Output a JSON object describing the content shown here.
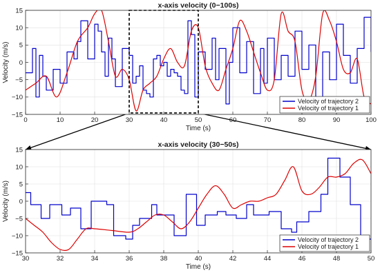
{
  "chart_data": [
    {
      "type": "line",
      "title": "x-axis velocity (0−100s)",
      "xlabel": "Time (s)",
      "ylabel": "Velocity (m/s)",
      "xlim": [
        0,
        100
      ],
      "ylim": [
        -15,
        15
      ],
      "xticks": [
        0,
        10,
        20,
        30,
        40,
        50,
        60,
        70,
        80,
        90,
        100
      ],
      "yticks": [
        -15,
        -10,
        -5,
        0,
        5,
        10,
        15
      ],
      "grid": true,
      "legend_position": "bottom-right",
      "highlight_box": {
        "x": [
          30,
          50
        ],
        "y": [
          -14.6,
          15
        ],
        "style": "dashed"
      },
      "series": [
        {
          "name": "Velocity of trajectory 2",
          "color": "#0000cc",
          "style": "step",
          "x": [
            0,
            2,
            3,
            4,
            5,
            6,
            8,
            10,
            12,
            14,
            15,
            16,
            18,
            20,
            21,
            22,
            23,
            24,
            25,
            26,
            28,
            30,
            31,
            32,
            33,
            34,
            35,
            36,
            37,
            38,
            39,
            40,
            41,
            42,
            43,
            44,
            45,
            46,
            47,
            48,
            49,
            50,
            52,
            54,
            55,
            56,
            58,
            59,
            60,
            62,
            64,
            66,
            68,
            69,
            70,
            72,
            74,
            76,
            78,
            80,
            82,
            84,
            86,
            88,
            90,
            92,
            94,
            96,
            98,
            100
          ],
          "y": [
            -3,
            4,
            -10,
            2,
            -4,
            -8,
            -2,
            -6,
            3,
            1,
            6,
            12,
            1,
            11,
            9,
            3,
            -4,
            7,
            1,
            -7,
            4,
            2,
            -6,
            -4,
            -1,
            -8,
            -9,
            -10,
            1,
            2,
            -1,
            0,
            -4,
            -2,
            -3,
            -4,
            -8,
            -9,
            12,
            8,
            -10,
            3,
            -2,
            7,
            -5,
            4,
            -12,
            0,
            10,
            -3,
            6,
            -9,
            4,
            -6,
            7,
            -5,
            2,
            -4,
            9,
            -2,
            5,
            -10,
            3,
            -5,
            11,
            2,
            -6,
            4,
            13,
            3
          ]
        },
        {
          "name": "Velocity of trajectory 1",
          "color": "#dd0000",
          "style": "smooth",
          "x": [
            0,
            3,
            6,
            9,
            12,
            15,
            18,
            20,
            22,
            24,
            26,
            28,
            30,
            32,
            34,
            36,
            38,
            40,
            42,
            44,
            46,
            48,
            50,
            52,
            54,
            56,
            58,
            60,
            62,
            64,
            66,
            68,
            70,
            72,
            74,
            76,
            78,
            80,
            82,
            84,
            86,
            88,
            90,
            92,
            94,
            96,
            98,
            100
          ],
          "y": [
            -8,
            -6,
            -4,
            -10,
            -3,
            6,
            10,
            14,
            15,
            6,
            -4,
            -2,
            -5,
            -14,
            -8,
            -6,
            -4,
            1,
            4,
            0,
            -1,
            9,
            10,
            -1,
            -6,
            -8,
            -2,
            4,
            12,
            9,
            3,
            -3,
            -8,
            -5,
            14,
            9,
            6,
            -8,
            -11,
            -4,
            14,
            12,
            6,
            -2,
            -3,
            1,
            -10,
            -12
          ]
        }
      ]
    },
    {
      "type": "line",
      "title": "x-axis velocity (30−50s)",
      "xlabel": "Time (s)",
      "ylabel": "Velocity (m/s)",
      "xlim": [
        30,
        50
      ],
      "ylim": [
        -15,
        15
      ],
      "xticks": [
        30,
        32,
        34,
        36,
        38,
        40,
        42,
        44,
        46,
        48,
        50
      ],
      "yticks": [
        -15,
        -10,
        -5,
        0,
        5,
        10,
        15
      ],
      "grid": true,
      "legend_position": "bottom-right",
      "series": [
        {
          "name": "Velocity of trajectory 2",
          "color": "#0000cc",
          "style": "step",
          "x": [
            30,
            30.3,
            30.9,
            31.4,
            32.1,
            32.6,
            33.2,
            33.8,
            34.7,
            35.1,
            35.8,
            36.2,
            36.6,
            37.3,
            37.6,
            38.0,
            38.6,
            39.3,
            39.9,
            40.4,
            41.1,
            41.6,
            42.2,
            42.8,
            43.2,
            44.1,
            44.8,
            45.4,
            45.7,
            46.4,
            47.1,
            47.5,
            48.2,
            48.8,
            49.4,
            49.9
          ],
          "y": [
            2.5,
            -1,
            -5,
            -1,
            -4,
            -2,
            -8,
            0,
            -1,
            -10,
            -11,
            -7,
            -5,
            -1,
            -4,
            -4,
            -10,
            2,
            -7,
            -4,
            -3,
            -4,
            -5,
            -1,
            -4,
            -3,
            -8,
            -9,
            -6,
            -3,
            2,
            12.5,
            7,
            -1,
            -10,
            -11
          ]
        },
        {
          "name": "Velocity of trajectory 1",
          "color": "#dd0000",
          "style": "smooth",
          "x": [
            30,
            30.5,
            31,
            31.5,
            32,
            32.5,
            33,
            33.5,
            34,
            35,
            36,
            36.5,
            37,
            37.5,
            38,
            38.5,
            39,
            39.5,
            40,
            40.5,
            41,
            41.5,
            42,
            42.5,
            43,
            43.5,
            44,
            44.5,
            45,
            45.5,
            46,
            46.5,
            47,
            47.5,
            48,
            48.5,
            49,
            49.5,
            50
          ],
          "y": [
            -5,
            -7,
            -9,
            -12,
            -14,
            -14,
            -11,
            -8,
            -8,
            -8.5,
            -9,
            -8,
            -6,
            -4,
            -4,
            -6,
            -8,
            -6,
            -2,
            2,
            4.5,
            2,
            -2,
            -1,
            0,
            0,
            1,
            2,
            6,
            10,
            3,
            2,
            4,
            7,
            7,
            8,
            11,
            12,
            8
          ]
        }
      ]
    }
  ]
}
